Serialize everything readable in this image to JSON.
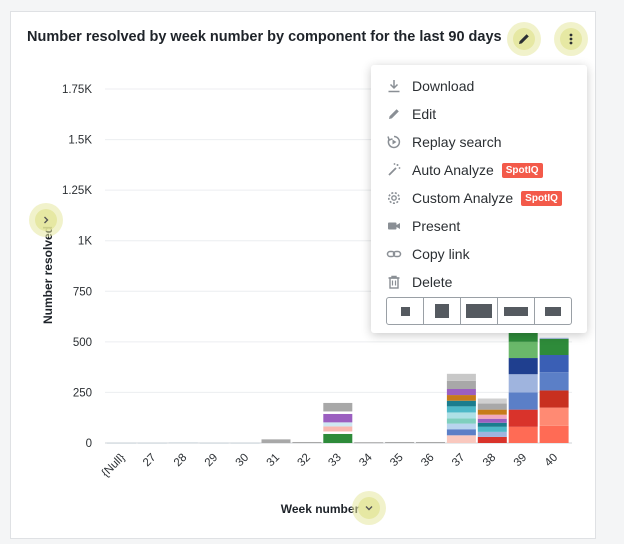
{
  "card": {
    "title": "Number resolved by week number by component for the last 90 days"
  },
  "menu": {
    "items": [
      {
        "label": "Download",
        "icon": "download-icon"
      },
      {
        "label": "Edit",
        "icon": "pencil-icon"
      },
      {
        "label": "Replay search",
        "icon": "replay-icon"
      },
      {
        "label": "Auto Analyze",
        "icon": "magic-wand-icon",
        "badge": "SpotIQ"
      },
      {
        "label": "Custom Analyze",
        "icon": "gear-icon",
        "badge": "SpotIQ"
      },
      {
        "label": "Present",
        "icon": "video-camera-icon"
      },
      {
        "label": "Copy link",
        "icon": "link-icon"
      },
      {
        "label": "Delete",
        "icon": "trash-icon"
      }
    ],
    "size_options": [
      "small",
      "medium",
      "large",
      "wide",
      "wide-short"
    ]
  },
  "colors": {
    "badge": "#f35a4a",
    "highlight": "#e6e8a0"
  },
  "chart_data": {
    "type": "bar",
    "stacked": true,
    "xlabel": "Week number",
    "ylabel": "Number resolved",
    "ylim": [
      0,
      1800
    ],
    "yticks": [
      "0",
      "250",
      "500",
      "750",
      "1K",
      "1.25K",
      "1.5K",
      "1.75K"
    ],
    "ytick_values": [
      0,
      250,
      500,
      750,
      1000,
      1250,
      1500,
      1750
    ],
    "categories": [
      "{Null}",
      "27",
      "28",
      "29",
      "30",
      "31",
      "32",
      "33",
      "34",
      "35",
      "36",
      "37",
      "38",
      "39",
      "40"
    ],
    "stacks": [
      {
        "category": "{Null}",
        "segments": [
          {
            "value": 2,
            "color": "#c5ced6"
          }
        ]
      },
      {
        "category": "27",
        "segments": [
          {
            "value": 2,
            "color": "#c5ced6"
          }
        ]
      },
      {
        "category": "28",
        "segments": [
          {
            "value": 3,
            "color": "#c5ced6"
          }
        ]
      },
      {
        "category": "29",
        "segments": [
          {
            "value": 2,
            "color": "#c5ced6"
          }
        ]
      },
      {
        "category": "30",
        "segments": [
          {
            "value": 2,
            "color": "#c5ced6"
          }
        ]
      },
      {
        "category": "31",
        "segments": [
          {
            "value": 18,
            "color": "#a8a8a8"
          }
        ]
      },
      {
        "category": "32",
        "segments": [
          {
            "value": 5,
            "color": "#a8a8a8"
          }
        ]
      },
      {
        "category": "33",
        "segments": [
          {
            "value": 45,
            "color": "#2e8b3a"
          },
          {
            "value": 12,
            "color": "#ffffff"
          },
          {
            "value": 25,
            "color": "#f9b8b0"
          },
          {
            "value": 20,
            "color": "#cfe8f2"
          },
          {
            "value": 42,
            "color": "#9b5fc0"
          },
          {
            "value": 12,
            "color": "#ffffff"
          },
          {
            "value": 42,
            "color": "#a8a8a8"
          }
        ]
      },
      {
        "category": "34",
        "segments": [
          {
            "value": 4,
            "color": "#a8a8a8"
          }
        ]
      },
      {
        "category": "35",
        "segments": [
          {
            "value": 5,
            "color": "#a8a8a8"
          }
        ]
      },
      {
        "category": "36",
        "segments": [
          {
            "value": 5,
            "color": "#a8a8a8"
          }
        ]
      },
      {
        "category": "37",
        "segments": [
          {
            "value": 38,
            "color": "#f9c8be"
          },
          {
            "value": 30,
            "color": "#5b7fc7"
          },
          {
            "value": 28,
            "color": "#b8d4ee"
          },
          {
            "value": 25,
            "color": "#7fcfbe"
          },
          {
            "value": 30,
            "color": "#aee0e6"
          },
          {
            "value": 30,
            "color": "#4db8c8"
          },
          {
            "value": 28,
            "color": "#1a7d8e"
          },
          {
            "value": 28,
            "color": "#c77b1a"
          },
          {
            "value": 30,
            "color": "#9b5fc0"
          },
          {
            "value": 40,
            "color": "#a8a8a8"
          },
          {
            "value": 35,
            "color": "#c8c8c8"
          }
        ]
      },
      {
        "category": "38",
        "segments": [
          {
            "value": 30,
            "color": "#d9332b"
          },
          {
            "value": 25,
            "color": "#9fb4de"
          },
          {
            "value": 25,
            "color": "#4db8c8"
          },
          {
            "value": 20,
            "color": "#1a7d8e"
          },
          {
            "value": 20,
            "color": "#9b5fc0"
          },
          {
            "value": 20,
            "color": "#f3a8c0"
          },
          {
            "value": 25,
            "color": "#c77b1a"
          },
          {
            "value": 30,
            "color": "#a8a8a8"
          },
          {
            "value": 25,
            "color": "#d0d0d0"
          }
        ]
      },
      {
        "category": "39",
        "segments": [
          {
            "value": 80,
            "color": "#ff6b55"
          },
          {
            "value": 85,
            "color": "#d9332b"
          },
          {
            "value": 85,
            "color": "#5b7fc7"
          },
          {
            "value": 90,
            "color": "#9fb4de"
          },
          {
            "value": 80,
            "color": "#1f3f8f"
          },
          {
            "value": 80,
            "color": "#6ab86a"
          },
          {
            "value": 60,
            "color": "#2e8b3a"
          }
        ]
      },
      {
        "category": "40",
        "segments": [
          {
            "value": 85,
            "color": "#ff6b55"
          },
          {
            "value": 90,
            "color": "#ff8a73"
          },
          {
            "value": 85,
            "color": "#c8301f"
          },
          {
            "value": 90,
            "color": "#5b7fc7"
          },
          {
            "value": 85,
            "color": "#3a5fb5"
          },
          {
            "value": 80,
            "color": "#2e8b3a"
          },
          {
            "value": 5,
            "color": "#9fb4de"
          }
        ]
      }
    ]
  }
}
